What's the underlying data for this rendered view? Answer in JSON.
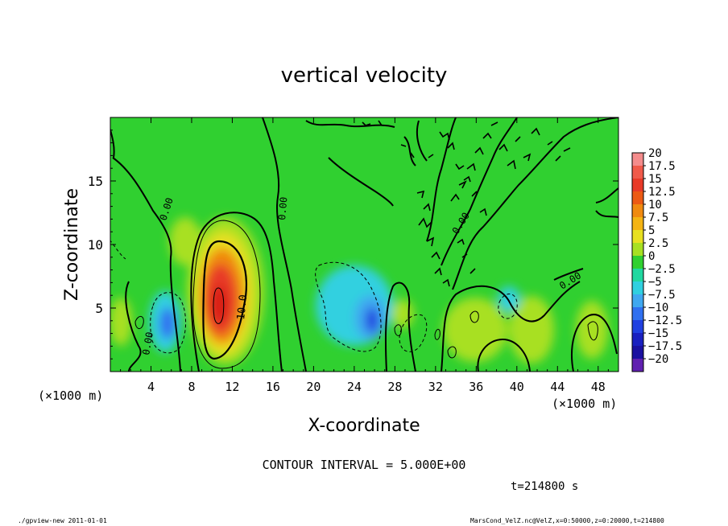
{
  "chart_data": {
    "type": "heatmap",
    "title": "vertical velocity",
    "xlabel": "X-coordinate",
    "ylabel": "Z-coordinate",
    "x_unit_label": "(×1000 m)",
    "y_unit_label": "(×1000 m)",
    "xlim": [
      0,
      50
    ],
    "ylim": [
      0,
      20
    ],
    "x_ticks": [
      4,
      8,
      12,
      16,
      20,
      24,
      28,
      32,
      36,
      40,
      44,
      48
    ],
    "x_tick_labels": [
      "4",
      "8",
      "12",
      "16",
      "20",
      "24",
      "28",
      "32",
      "36",
      "40",
      "44",
      "48"
    ],
    "y_ticks": [
      5,
      10,
      15
    ],
    "y_tick_labels": [
      "5",
      "10",
      "15"
    ],
    "colorbar": {
      "levels": [
        20,
        17.5,
        15,
        12.5,
        10,
        7.5,
        5,
        2.5,
        0,
        -2.5,
        -5,
        -7.5,
        -10,
        -12.5,
        -15,
        -17.5,
        -20
      ],
      "labels": [
        "20",
        "17.5",
        "15",
        "12.5",
        "10",
        "7.5",
        "5",
        "2.5",
        "0",
        "−2.5",
        "−5",
        "−7.5",
        "−10",
        "−12.5",
        "−15",
        "−17.5",
        "−20"
      ],
      "colors": [
        "#f48c8c",
        "#f05a4a",
        "#e83a28",
        "#ec5a14",
        "#f08a10",
        "#f4b414",
        "#e8e020",
        "#a8e022",
        "#30d030",
        "#20d8a0",
        "#30d0e0",
        "#40a8f0",
        "#3070f0",
        "#2040e0",
        "#1a20c0",
        "#1a10a0",
        "#6020b0"
      ]
    },
    "contour_labels": [
      "0.00",
      "0.00",
      "10.0",
      "0.00",
      "0.00",
      "0.00"
    ],
    "features": [
      {
        "type": "updraft",
        "x": 11.0,
        "z": 5.5,
        "peak": 15
      },
      {
        "type": "downdraft",
        "x": 5.8,
        "z": 3.8,
        "peak": -10
      },
      {
        "type": "downdraft",
        "x": 25.5,
        "z": 4.5,
        "peak": -10
      },
      {
        "type": "downdraft",
        "x": 26.5,
        "z": 3.0,
        "peak": -10
      }
    ],
    "contour_interval_label": "CONTOUR INTERVAL = 5.000E+00",
    "time_label": "t=214800 s",
    "grid": false
  },
  "footer": {
    "left": "./gpview-new  2011-01-01",
    "right": "MarsCond_VelZ.nc@VelZ,x=0:50000,z=0:20000,t=214800"
  }
}
